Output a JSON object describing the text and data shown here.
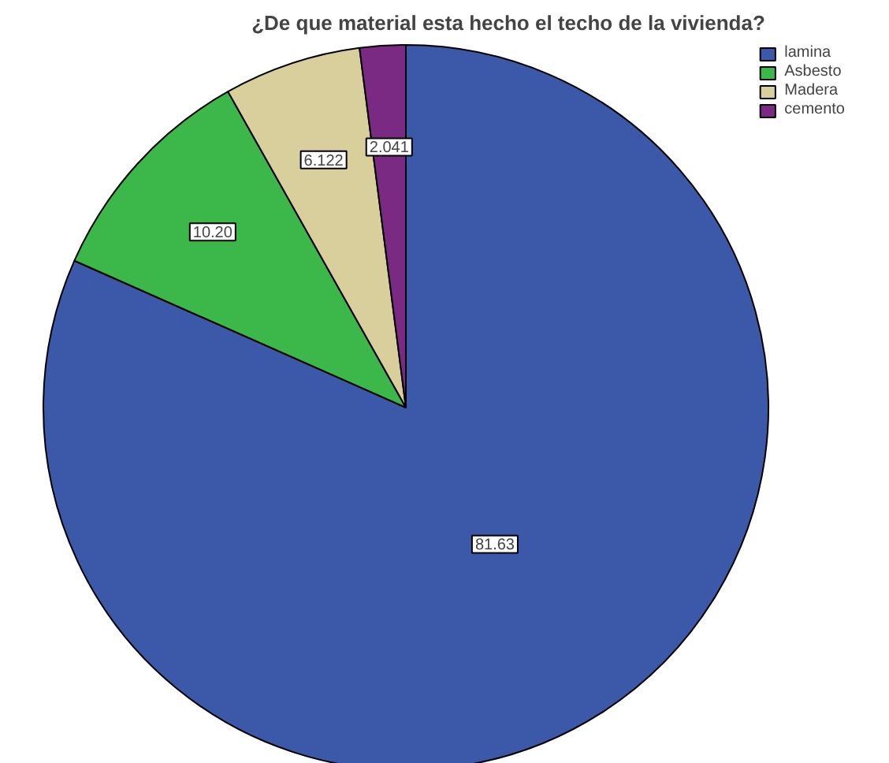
{
  "chart_data": {
    "type": "pie",
    "title": "¿De que material esta hecho el techo de la vivienda?",
    "categories": [
      "lamina",
      "Asbesto",
      "Madera",
      "cemento"
    ],
    "values": [
      81.63,
      10.2,
      6.122,
      2.041
    ],
    "value_labels": [
      "81.63",
      "10.20",
      "6.122",
      "2.041"
    ],
    "colors": [
      "#3c58a8",
      "#3cb84a",
      "#d8cf9c",
      "#7b2a83"
    ],
    "legend": "top right"
  }
}
